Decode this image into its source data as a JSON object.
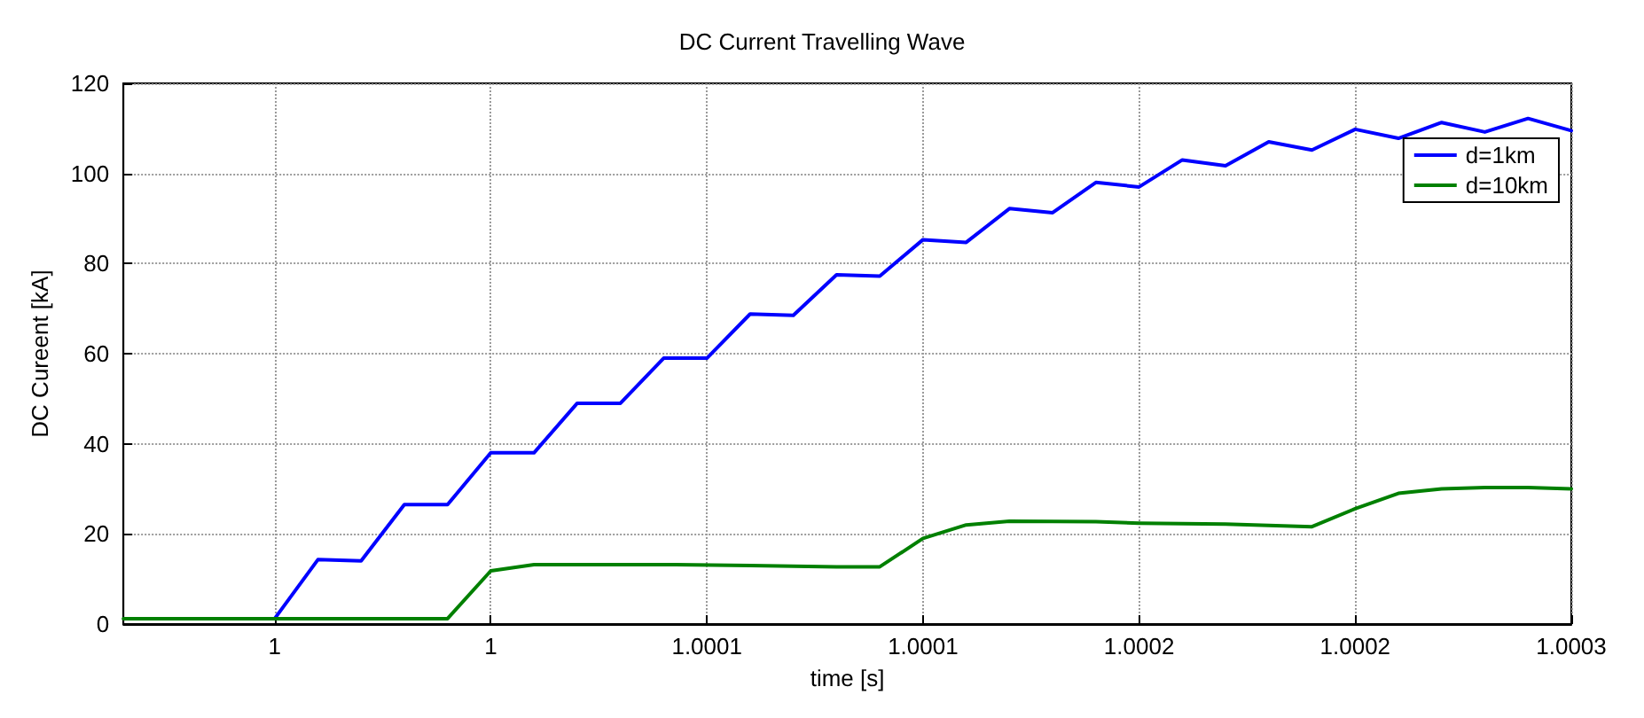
{
  "chart_data": {
    "type": "line",
    "title": "DC Current Travelling Wave",
    "xlabel": "time [s]",
    "ylabel": "DC Cureent [kA]",
    "xlim": [
      0.999965,
      1.0003
    ],
    "ylim": [
      0,
      120
    ],
    "xticks": [
      {
        "value": 1.0,
        "label": "1"
      },
      {
        "value": 1.00005,
        "label": "1"
      },
      {
        "value": 1.0001,
        "label": "1.0001"
      },
      {
        "value": 1.00015,
        "label": "1.0001"
      },
      {
        "value": 1.0002,
        "label": "1.0002"
      },
      {
        "value": 1.00025,
        "label": "1.0002"
      },
      {
        "value": 1.0003,
        "label": "1.0003"
      }
    ],
    "yticks": [
      0,
      20,
      40,
      60,
      80,
      100,
      120
    ],
    "grid": true,
    "legend": "top right",
    "marker": "none",
    "line_style": "solid",
    "series": [
      {
        "name": "d=1km",
        "color": "#0000ff",
        "x": [
          1.0,
          1.00001,
          1.00002,
          1.00003,
          1.00004,
          1.00005,
          1.00006,
          1.00007,
          1.00008,
          1.00009,
          1.0001,
          1.00011,
          1.00012,
          1.00013,
          1.00014,
          1.00015,
          1.00016,
          1.00017,
          1.00018,
          1.00019,
          1.0002,
          1.00021,
          1.00022,
          1.00023,
          1.00024,
          1.00025,
          1.00026,
          1.00027,
          1.00028,
          1.00029,
          1.0003
        ],
        "values": [
          1.2,
          14.3,
          14,
          26.5,
          26.5,
          38,
          38,
          49,
          49,
          59,
          59,
          68.8,
          68.5,
          77.5,
          77.2,
          85.3,
          84.7,
          92.2,
          91.3,
          98,
          97,
          103,
          101.7,
          107,
          105.2,
          109.8,
          107.8,
          111.3,
          109.2,
          112.2,
          109.5
        ]
      },
      {
        "name": "d=10km",
        "color": "#008000",
        "x": [
          0.999965,
          1.00004,
          1.00005,
          1.00006,
          1.00009,
          1.00011,
          1.00013,
          1.00014,
          1.00015,
          1.00016,
          1.00017,
          1.00019,
          1.0002,
          1.00022,
          1.00024,
          1.00025,
          1.00026,
          1.00027,
          1.00028,
          1.00029,
          1.0003
        ],
        "values": [
          1.2,
          1.2,
          11.8,
          13.2,
          13.2,
          13,
          12.7,
          12.7,
          19,
          22,
          22.8,
          22.7,
          22.4,
          22.2,
          21.6,
          25.6,
          29,
          30,
          30.3,
          30.3,
          30
        ]
      }
    ]
  }
}
